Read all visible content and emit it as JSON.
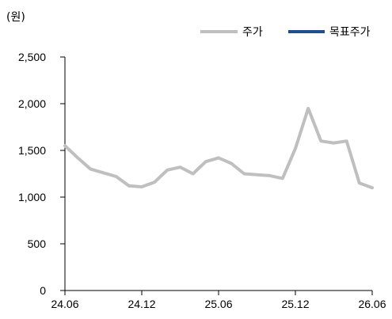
{
  "chart_data": {
    "type": "line",
    "unit_label": "(원)",
    "x_ticks": [
      "24.06",
      "24.12",
      "25.06",
      "25.12",
      "26.06"
    ],
    "y_ticks": [
      "0",
      "500",
      "1,000",
      "1,500",
      "2,000",
      "2,500"
    ],
    "ylim": [
      0,
      2500
    ],
    "grid": false,
    "legend_position": "top-right",
    "series": [
      {
        "name": "주가",
        "color": "#bfbfbf",
        "x": [
          "24.06",
          "24.07",
          "24.08",
          "24.09",
          "24.10",
          "24.11",
          "24.12",
          "25.01",
          "25.02",
          "25.03",
          "25.04",
          "25.05",
          "25.06",
          "25.07",
          "25.08",
          "25.09",
          "25.10",
          "25.11",
          "25.12",
          "26.01",
          "26.02",
          "26.03",
          "26.04",
          "26.05",
          "26.06"
        ],
        "values": [
          1550,
          1420,
          1300,
          1260,
          1220,
          1120,
          1110,
          1160,
          1290,
          1320,
          1250,
          1380,
          1420,
          1360,
          1250,
          1240,
          1230,
          1200,
          1520,
          1950,
          1600,
          1580,
          1600,
          1150,
          1100
        ]
      },
      {
        "name": "목표주가",
        "color": "#1f4e8c",
        "x": [],
        "values": []
      }
    ]
  }
}
